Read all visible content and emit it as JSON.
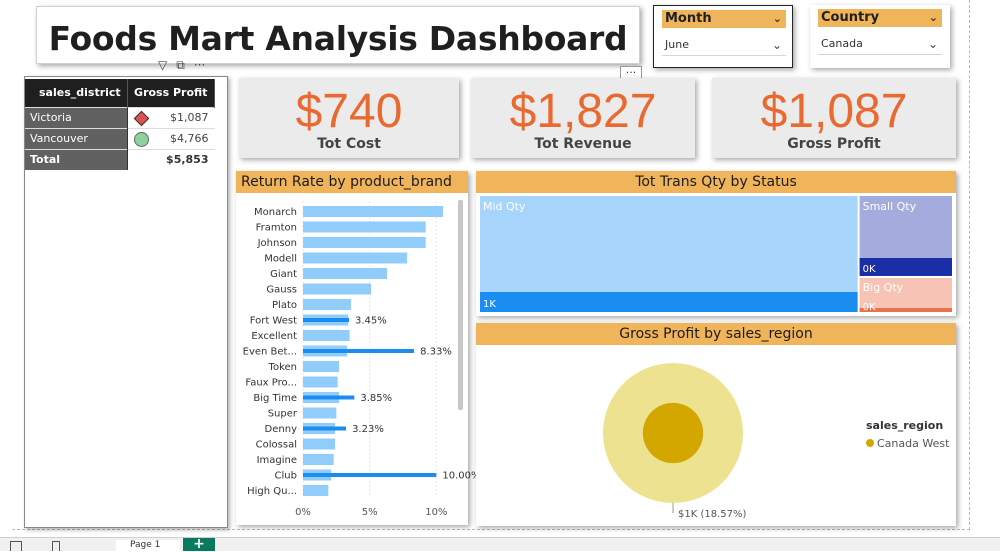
{
  "title": "Foods Mart Analysis Dashboard",
  "slicers": {
    "month": {
      "label": "Month",
      "value": "June"
    },
    "country": {
      "label": "Country",
      "value": "Canada"
    }
  },
  "district_table": {
    "headers": [
      "sales_district",
      "Gross Profit"
    ],
    "rows": [
      {
        "name": "Victoria",
        "value": "$1,087",
        "marker": "diamond-icon"
      },
      {
        "name": "Vancouver",
        "value": "$4,766",
        "marker": "circle-icon"
      }
    ],
    "total": {
      "name": "Total",
      "value": "$5,853"
    }
  },
  "kpis": {
    "cost": {
      "value": "$740",
      "label": "Tot Cost"
    },
    "revenue": {
      "value": "$1,827",
      "label": "Tot Revenue"
    },
    "profit": {
      "value": "$1,087",
      "label": "Gross Profit"
    }
  },
  "colors": {
    "header_orange": "#f0b45a",
    "kpi_orange": "#e86a31",
    "bar_light": "#90cdfa",
    "bar_dark": "#1b8cf0",
    "pie_outer": "#ede28f",
    "pie_inner": "#d4a700"
  },
  "chart_data": [
    {
      "type": "bar",
      "title": "Return Rate by product_brand",
      "categories": [
        "Monarch",
        "Framton",
        "Johnson",
        "Modell",
        "Giant",
        "Gauss",
        "Plato",
        "Fort West",
        "Excellent",
        "Even Bet...",
        "Token",
        "Faux Pro...",
        "Big Time",
        "Super",
        "Denny",
        "Colossal",
        "Imagine",
        "Club",
        "High Qu..."
      ],
      "series": [
        {
          "values": [
            10.5,
            9.2,
            9.2,
            7.8,
            6.3,
            5.1,
            3.6,
            3.4,
            3.5,
            3.3,
            2.7,
            2.6,
            2.7,
            2.5,
            2.4,
            2.4,
            2.3,
            2.1,
            1.9
          ]
        },
        {
          "values": [
            null,
            null,
            null,
            null,
            null,
            null,
            null,
            3.45,
            null,
            8.33,
            null,
            null,
            3.85,
            null,
            3.23,
            null,
            null,
            10.0,
            null
          ]
        }
      ],
      "data_labels": [
        "",
        "",
        "",
        "",
        "",
        "",
        "",
        "3.45%",
        "",
        "8.33%",
        "",
        "",
        "3.85%",
        "",
        "3.23%",
        "",
        "",
        "10.00%",
        ""
      ],
      "x_ticks": [
        "0%",
        "5%",
        "10%"
      ],
      "xlim": [
        0,
        12
      ]
    },
    {
      "type": "treemap",
      "title": "Tot Trans Qty by Status",
      "items": [
        {
          "name": "Mid Qty",
          "value_label": "1K",
          "weight": 0.8
        },
        {
          "name": "Small Qty",
          "value_label": "0K",
          "weight": 0.14
        },
        {
          "name": "Big Qty",
          "value_label": "0K",
          "weight": 0.06
        }
      ]
    },
    {
      "type": "pie",
      "title": "Gross Profit by sales_region",
      "legend_title": "sales_region",
      "legend": [
        "Canada West"
      ],
      "slices": [
        {
          "name": "Canada West",
          "value": 1087,
          "label": "$1K (18.57%)",
          "percent": 18.57
        }
      ]
    }
  ],
  "bottom": {
    "page_tab": "Page 1",
    "add_label": "+"
  }
}
